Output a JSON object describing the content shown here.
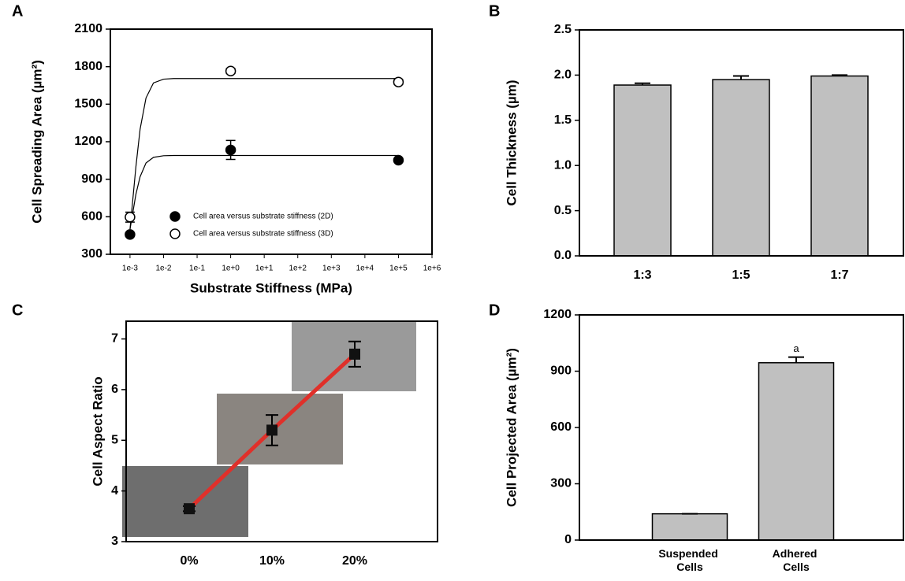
{
  "chart_data": [
    {
      "type": "scatter",
      "label": "A",
      "xlabel": "Substrate Stiffness (MPa)",
      "ylabel": "Cell Spreading Area (µm²)",
      "log_x": true,
      "xlim": [
        0.00026,
        1000000
      ],
      "xticks": [
        {
          "value": 0.001,
          "label": "1e-3"
        },
        {
          "value": 0.01,
          "label": "1e-2"
        },
        {
          "value": 0.1,
          "label": "1e-1"
        },
        {
          "value": 1,
          "label": "1e+0"
        },
        {
          "value": 10,
          "label": "1e+1"
        },
        {
          "value": 100,
          "label": "1e+2"
        },
        {
          "value": 1000,
          "label": "1e+3"
        },
        {
          "value": 10000,
          "label": "1e+4"
        },
        {
          "value": 100000,
          "label": "1e+5"
        },
        {
          "value": 1000000,
          "label": "1e+6"
        }
      ],
      "ylim": [
        300,
        2100
      ],
      "yticks": [
        300,
        600,
        900,
        1200,
        1500,
        1800,
        2100
      ],
      "series": [
        {
          "name": "Cell area versus substrate stiffness (2D)",
          "color": "#000000",
          "filled": true,
          "x": [
            0.001,
            1,
            100000
          ],
          "values": [
            458,
            1134,
            1052
          ],
          "errors": [
            15,
            76,
            15
          ]
        },
        {
          "name": "Cell area versus substrate stiffness (3D)",
          "color": "#000000",
          "filled": false,
          "x": [
            0.001,
            1,
            100000
          ],
          "values": [
            597,
            1765,
            1677
          ],
          "errors": [
            40,
            20,
            20
          ]
        }
      ],
      "fit_lines": [
        {
          "x": [
            0.001,
            0.0015,
            0.002,
            0.003,
            0.005,
            0.01,
            0.02,
            100000
          ],
          "values": [
            500,
            780,
            920,
            1030,
            1075,
            1088,
            1090,
            1090
          ]
        },
        {
          "x": [
            0.001,
            0.0015,
            0.002,
            0.003,
            0.005,
            0.01,
            0.02,
            100000
          ],
          "values": [
            500,
            1000,
            1300,
            1550,
            1670,
            1700,
            1705,
            1705
          ]
        }
      ]
    },
    {
      "type": "bar",
      "label": "B",
      "ylabel": "Cell Thickness (µm)",
      "categories": [
        "1:3",
        "1:5",
        "1:7"
      ],
      "values": [
        1.89,
        1.95,
        1.99
      ],
      "errors": [
        0.02,
        0.04,
        0.01
      ],
      "color": "#c0c0c0",
      "ylim": [
        0,
        2.5
      ],
      "yticks": [
        {
          "value": 0,
          "label": "0.0"
        },
        0.5,
        {
          "value": 1,
          "label": "1.0"
        },
        1.5,
        {
          "value": 2,
          "label": "2.0"
        },
        2.5
      ]
    },
    {
      "type": "line",
      "label": "C",
      "ylabel": "Cell Aspect Ratio",
      "categories": [
        "0%",
        "10%",
        "20%"
      ],
      "values": [
        3.65,
        5.2,
        6.7
      ],
      "errors": [
        0.05,
        0.3,
        0.25
      ],
      "color": "#e0302a",
      "ylim": [
        3,
        7.35
      ],
      "yticks": [
        3,
        4,
        5,
        6,
        7
      ]
    },
    {
      "type": "bar",
      "label": "D",
      "ylabel": "Cell Projected Area (µm²)",
      "categories": [
        "Suspended Cells",
        "Adhered Cells"
      ],
      "values": [
        140,
        945
      ],
      "errors": [
        0,
        30
      ],
      "annotation": "a",
      "color": "#c0c0c0",
      "ylim": [
        0,
        1200
      ],
      "yticks": [
        0,
        300,
        600,
        900,
        1200
      ]
    }
  ]
}
